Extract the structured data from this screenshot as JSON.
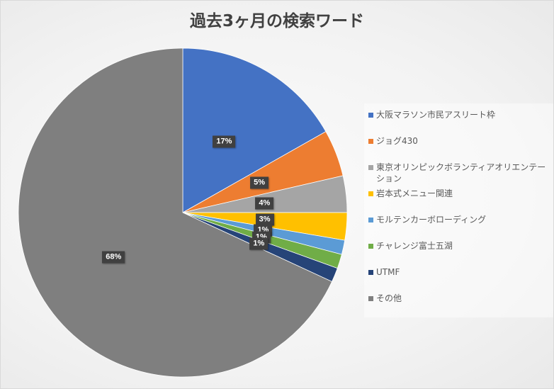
{
  "chart_data": {
    "type": "pie",
    "title": "過去3ヶ月の検索ワード",
    "categories": [
      "大阪マラソン市民アスリート枠",
      "ジョグ430",
      "東京オリンピックボランティアオリエンテーション",
      "岩本式メニュー関連",
      "モルテンカーボローディング",
      "チャレンジ富士五湖",
      "UTMF",
      "その他"
    ],
    "values": [
      16.8,
      4.6,
      3.6,
      2.7,
      1.4,
      1.4,
      1.4,
      68.1
    ],
    "data_labels": [
      "17%",
      "5%",
      "4%",
      "3%",
      "1%",
      "1%",
      "1%",
      "68%"
    ],
    "colors": [
      "#4472C4",
      "#ED7D31",
      "#A5A5A5",
      "#FFC000",
      "#5B9BD5",
      "#70AD47",
      "#264478",
      "#7F7F7F"
    ],
    "legend_position": "right"
  }
}
